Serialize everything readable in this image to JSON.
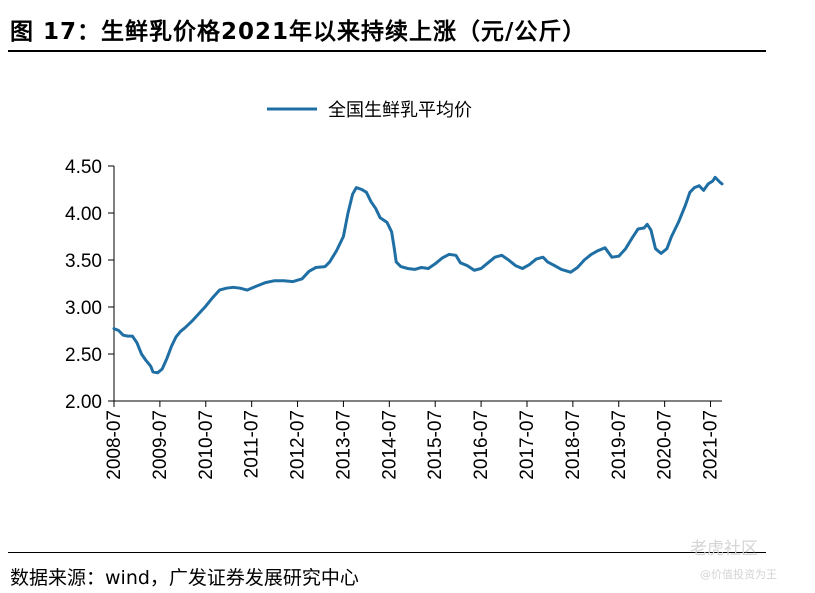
{
  "figure": {
    "title": "图 17：生鲜乳价格2021年以来持续上涨（元/公斤）",
    "source": "数据来源：wind，广发证券发展研究中心"
  },
  "watermark": {
    "brand": "老虎社区",
    "handle": "@价值投资为王"
  },
  "chart_data": {
    "type": "line",
    "title": "",
    "xlabel": "",
    "ylabel": "",
    "legend": "top-center",
    "grid": false,
    "line_color": "#1f6fa4",
    "ylim": [
      2.0,
      4.5
    ],
    "yticks": [
      "2.00",
      "2.50",
      "3.00",
      "3.50",
      "4.00",
      "4.50"
    ],
    "ytick_values": [
      2.0,
      2.5,
      3.0,
      3.5,
      4.0,
      4.5
    ],
    "xlim": [
      2008.5,
      2021.75
    ],
    "xticks": [
      "2008-07",
      "2009-07",
      "2010-07",
      "2011-07",
      "2012-07",
      "2013-07",
      "2014-07",
      "2015-07",
      "2016-07",
      "2017-07",
      "2018-07",
      "2019-07",
      "2020-07",
      "2021-07"
    ],
    "xtick_values": [
      2008.5,
      2009.5,
      2010.5,
      2011.5,
      2012.5,
      2013.5,
      2014.5,
      2015.5,
      2016.5,
      2017.5,
      2018.5,
      2019.5,
      2020.5,
      2021.5
    ],
    "series": [
      {
        "name": "全国生鲜乳平均价",
        "points": [
          [
            2008.5,
            2.77
          ],
          [
            2008.6,
            2.75
          ],
          [
            2008.7,
            2.7
          ],
          [
            2008.8,
            2.69
          ],
          [
            2008.9,
            2.69
          ],
          [
            2009.0,
            2.62
          ],
          [
            2009.1,
            2.5
          ],
          [
            2009.2,
            2.43
          ],
          [
            2009.3,
            2.37
          ],
          [
            2009.35,
            2.31
          ],
          [
            2009.45,
            2.3
          ],
          [
            2009.55,
            2.34
          ],
          [
            2009.65,
            2.45
          ],
          [
            2009.75,
            2.58
          ],
          [
            2009.85,
            2.68
          ],
          [
            2009.95,
            2.74
          ],
          [
            2010.05,
            2.78
          ],
          [
            2010.2,
            2.85
          ],
          [
            2010.35,
            2.93
          ],
          [
            2010.5,
            3.01
          ],
          [
            2010.65,
            3.1
          ],
          [
            2010.8,
            3.18
          ],
          [
            2010.95,
            3.2
          ],
          [
            2011.1,
            3.21
          ],
          [
            2011.25,
            3.2
          ],
          [
            2011.4,
            3.18
          ],
          [
            2011.6,
            3.22
          ],
          [
            2011.8,
            3.26
          ],
          [
            2012.0,
            3.28
          ],
          [
            2012.2,
            3.28
          ],
          [
            2012.4,
            3.27
          ],
          [
            2012.6,
            3.3
          ],
          [
            2012.75,
            3.38
          ],
          [
            2012.9,
            3.42
          ],
          [
            2013.1,
            3.43
          ],
          [
            2013.2,
            3.48
          ],
          [
            2013.35,
            3.6
          ],
          [
            2013.5,
            3.75
          ],
          [
            2013.6,
            4.0
          ],
          [
            2013.7,
            4.2
          ],
          [
            2013.78,
            4.27
          ],
          [
            2013.9,
            4.25
          ],
          [
            2014.0,
            4.22
          ],
          [
            2014.1,
            4.12
          ],
          [
            2014.2,
            4.05
          ],
          [
            2014.3,
            3.95
          ],
          [
            2014.45,
            3.9
          ],
          [
            2014.55,
            3.8
          ],
          [
            2014.6,
            3.65
          ],
          [
            2014.65,
            3.48
          ],
          [
            2014.75,
            3.43
          ],
          [
            2014.9,
            3.41
          ],
          [
            2015.05,
            3.4
          ],
          [
            2015.2,
            3.42
          ],
          [
            2015.35,
            3.41
          ],
          [
            2015.5,
            3.46
          ],
          [
            2015.65,
            3.52
          ],
          [
            2015.8,
            3.56
          ],
          [
            2015.95,
            3.55
          ],
          [
            2016.05,
            3.47
          ],
          [
            2016.2,
            3.44
          ],
          [
            2016.35,
            3.39
          ],
          [
            2016.5,
            3.41
          ],
          [
            2016.65,
            3.47
          ],
          [
            2016.8,
            3.53
          ],
          [
            2016.95,
            3.55
          ],
          [
            2017.1,
            3.5
          ],
          [
            2017.25,
            3.44
          ],
          [
            2017.4,
            3.41
          ],
          [
            2017.55,
            3.45
          ],
          [
            2017.7,
            3.51
          ],
          [
            2017.85,
            3.53
          ],
          [
            2017.95,
            3.48
          ],
          [
            2018.1,
            3.44
          ],
          [
            2018.25,
            3.4
          ],
          [
            2018.45,
            3.37
          ],
          [
            2018.6,
            3.42
          ],
          [
            2018.75,
            3.5
          ],
          [
            2018.9,
            3.56
          ],
          [
            2019.05,
            3.6
          ],
          [
            2019.2,
            3.63
          ],
          [
            2019.35,
            3.53
          ],
          [
            2019.5,
            3.54
          ],
          [
            2019.65,
            3.62
          ],
          [
            2019.8,
            3.74
          ],
          [
            2019.92,
            3.83
          ],
          [
            2020.05,
            3.84
          ],
          [
            2020.12,
            3.88
          ],
          [
            2020.2,
            3.82
          ],
          [
            2020.3,
            3.62
          ],
          [
            2020.42,
            3.57
          ],
          [
            2020.55,
            3.62
          ],
          [
            2020.65,
            3.75
          ],
          [
            2020.8,
            3.9
          ],
          [
            2020.95,
            4.08
          ],
          [
            2021.05,
            4.22
          ],
          [
            2021.15,
            4.27
          ],
          [
            2021.25,
            4.29
          ],
          [
            2021.35,
            4.24
          ],
          [
            2021.45,
            4.31
          ],
          [
            2021.55,
            4.34
          ],
          [
            2021.6,
            4.38
          ],
          [
            2021.7,
            4.33
          ],
          [
            2021.75,
            4.31
          ]
        ]
      }
    ]
  }
}
